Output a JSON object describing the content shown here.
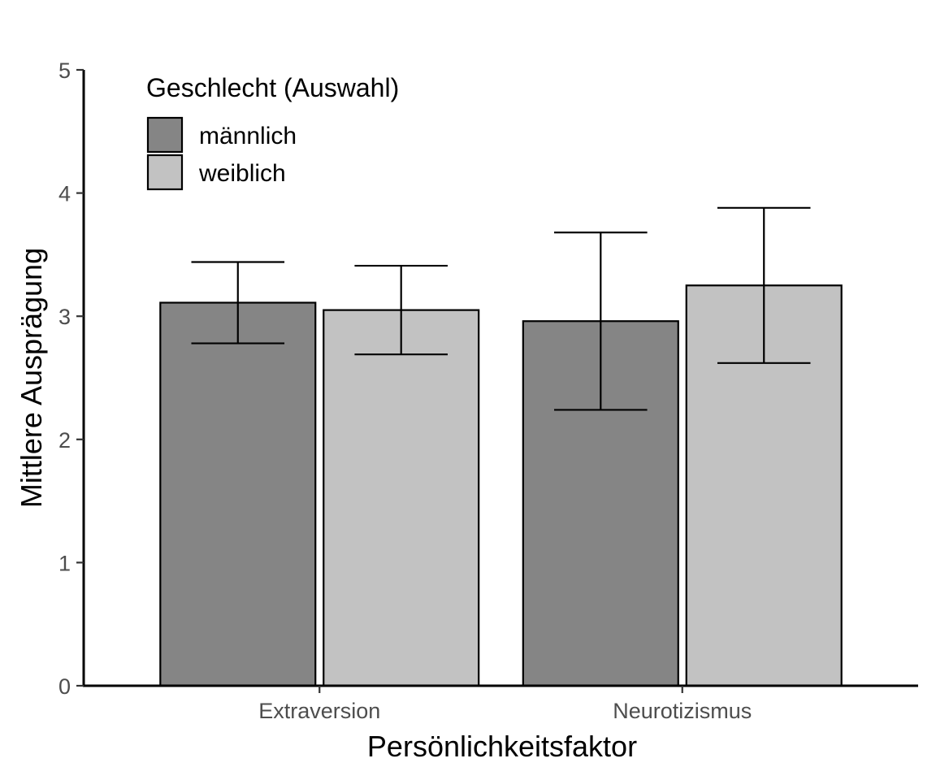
{
  "chart_data": {
    "type": "bar",
    "title": "",
    "xlabel": "Persönlichkeitsfaktor",
    "ylabel": "Mittlere Ausprägung",
    "ylim": [
      0,
      5
    ],
    "yticks": [
      "0",
      "1",
      "2",
      "3",
      "4",
      "5"
    ],
    "categories": [
      "Extraversion",
      "Neurotizismus"
    ],
    "legend": {
      "title": "Geschlecht (Auswahl)",
      "position": "top-left"
    },
    "grid": false,
    "series": [
      {
        "name": "männlich",
        "color": "#858585",
        "values": [
          3.11,
          2.96
        ],
        "error_low": [
          2.78,
          2.24
        ],
        "error_high": [
          3.44,
          3.68
        ]
      },
      {
        "name": "weiblich",
        "color": "#c2c2c2",
        "values": [
          3.05,
          3.25
        ],
        "error_low": [
          2.69,
          2.62
        ],
        "error_high": [
          3.41,
          3.88
        ]
      }
    ]
  }
}
